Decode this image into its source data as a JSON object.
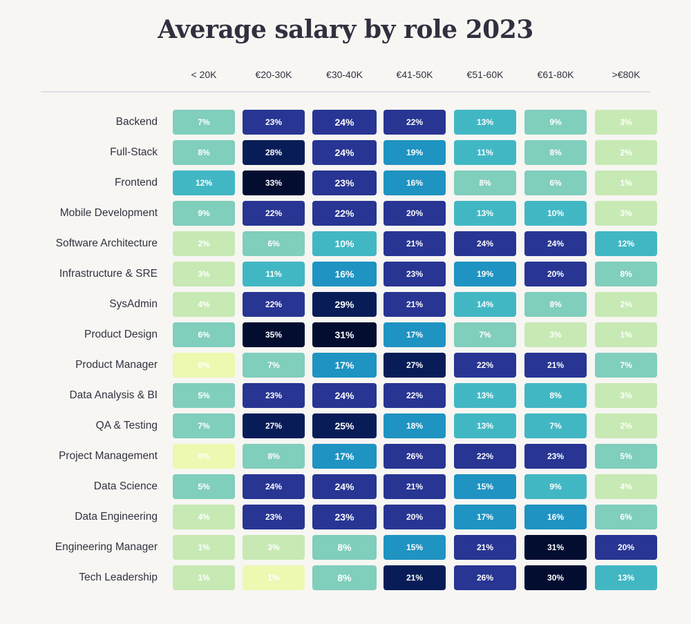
{
  "chart_data": {
    "type": "heatmap",
    "title": "Average salary by role 2023",
    "xlabel": "",
    "ylabel": "",
    "columns": [
      "< 20K",
      "€20-30K",
      "€30-40K",
      "€41-50K",
      "€51-60K",
      "€61-80K",
      ">€80K"
    ],
    "rows": [
      {
        "label": "Backend",
        "values": [
          7,
          23,
          24,
          22,
          13,
          9,
          3
        ],
        "colors": [
          "#80cebc",
          "#283593",
          "#283593",
          "#283593",
          "#42b7c4",
          "#80cebc",
          "#c7e9b4"
        ]
      },
      {
        "label": "Full-Stack",
        "values": [
          8,
          28,
          24,
          19,
          11,
          8,
          2
        ],
        "colors": [
          "#80cebc",
          "#081d58",
          "#283593",
          "#1f93c2",
          "#42b7c4",
          "#80cebc",
          "#c7e9b4"
        ]
      },
      {
        "label": "Frontend",
        "values": [
          12,
          33,
          23,
          16,
          8,
          6,
          1
        ],
        "colors": [
          "#42b7c4",
          "#020d30",
          "#283593",
          "#1f93c2",
          "#80cebc",
          "#80cebc",
          "#c7e9b4"
        ]
      },
      {
        "label": "Mobile Development",
        "values": [
          9,
          22,
          22,
          20,
          13,
          10,
          3
        ],
        "colors": [
          "#80cebc",
          "#283593",
          "#283593",
          "#283593",
          "#42b7c4",
          "#42b7c4",
          "#c7e9b4"
        ]
      },
      {
        "label": "Software Architecture",
        "values": [
          2,
          6,
          10,
          21,
          24,
          24,
          12
        ],
        "colors": [
          "#c7e9b4",
          "#80cebc",
          "#42b7c4",
          "#283593",
          "#283593",
          "#283593",
          "#42b7c4"
        ]
      },
      {
        "label": "Infrastructure & SRE",
        "values": [
          3,
          11,
          16,
          23,
          19,
          20,
          8
        ],
        "colors": [
          "#c7e9b4",
          "#42b7c4",
          "#1f93c2",
          "#283593",
          "#1f93c2",
          "#283593",
          "#80cebc"
        ]
      },
      {
        "label": "SysAdmin",
        "values": [
          4,
          22,
          29,
          21,
          14,
          8,
          2
        ],
        "colors": [
          "#c7e9b4",
          "#283593",
          "#081d58",
          "#283593",
          "#42b7c4",
          "#80cebc",
          "#c7e9b4"
        ]
      },
      {
        "label": "Product Design",
        "values": [
          6,
          35,
          31,
          17,
          7,
          3,
          1
        ],
        "colors": [
          "#80cebc",
          "#020d30",
          "#020d30",
          "#1f93c2",
          "#80cebc",
          "#c7e9b4",
          "#c7e9b4"
        ]
      },
      {
        "label": "Product Manager",
        "values": [
          0,
          7,
          17,
          27,
          22,
          21,
          7
        ],
        "colors": [
          "#edf8b1",
          "#80cebc",
          "#1f93c2",
          "#081d58",
          "#283593",
          "#283593",
          "#80cebc"
        ]
      },
      {
        "label": "Data Analysis & BI",
        "values": [
          5,
          23,
          24,
          22,
          13,
          8,
          3
        ],
        "colors": [
          "#80cebc",
          "#283593",
          "#283593",
          "#283593",
          "#42b7c4",
          "#42b7c4",
          "#c7e9b4"
        ]
      },
      {
        "label": "QA & Testing",
        "values": [
          7,
          27,
          25,
          18,
          13,
          7,
          2
        ],
        "colors": [
          "#80cebc",
          "#081d58",
          "#081d58",
          "#1f93c2",
          "#42b7c4",
          "#42b7c4",
          "#c7e9b4"
        ]
      },
      {
        "label": "Project Management",
        "values": [
          0,
          8,
          17,
          26,
          22,
          23,
          5
        ],
        "colors": [
          "#edf8b1",
          "#80cebc",
          "#1f93c2",
          "#283593",
          "#283593",
          "#283593",
          "#80cebc"
        ]
      },
      {
        "label": "Data Science",
        "values": [
          5,
          24,
          24,
          21,
          15,
          9,
          4
        ],
        "colors": [
          "#80cebc",
          "#283593",
          "#283593",
          "#283593",
          "#1f93c2",
          "#42b7c4",
          "#c7e9b4"
        ]
      },
      {
        "label": "Data Engineering",
        "values": [
          4,
          23,
          23,
          20,
          17,
          16,
          6
        ],
        "colors": [
          "#c7e9b4",
          "#283593",
          "#283593",
          "#283593",
          "#1f93c2",
          "#1f93c2",
          "#80cebc"
        ]
      },
      {
        "label": "Engineering Manager",
        "values": [
          1,
          3,
          8,
          15,
          21,
          31,
          20
        ],
        "colors": [
          "#c7e9b4",
          "#c7e9b4",
          "#80cebc",
          "#1f93c2",
          "#283593",
          "#020d30",
          "#283593"
        ]
      },
      {
        "label": "Tech Leadership",
        "values": [
          1,
          1,
          8,
          21,
          26,
          30,
          13
        ],
        "colors": [
          "#c7e9b4",
          "#edf8b1",
          "#80cebc",
          "#081d58",
          "#283593",
          "#020d30",
          "#42b7c4"
        ]
      }
    ],
    "value_suffix": "%",
    "grid": false,
    "legend": "none"
  }
}
